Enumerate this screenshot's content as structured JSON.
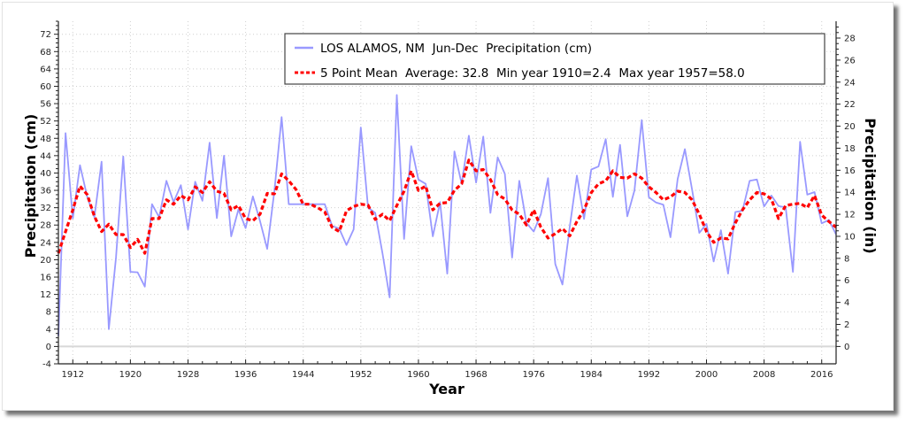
{
  "chart_data": {
    "type": "line",
    "title": "",
    "xlabel": "Year",
    "ylabel": "Precipitation (cm)",
    "ylabel_right": "Precipitation (in)",
    "xlim": [
      1910,
      2018
    ],
    "ylim": [
      -4,
      75
    ],
    "ylim_right_in": [
      -1.575,
      29.53
    ],
    "grid": true,
    "legend_position": "top-right",
    "x_ticks": [
      1912,
      1920,
      1928,
      1936,
      1944,
      1952,
      1960,
      1968,
      1976,
      1984,
      1992,
      2000,
      2008,
      2016
    ],
    "y_ticks": [
      -4,
      0,
      4,
      8,
      12,
      16,
      20,
      24,
      28,
      32,
      36,
      40,
      44,
      48,
      52,
      56,
      60,
      64,
      68,
      72
    ],
    "y_ticks_right": [
      0,
      2,
      4,
      6,
      8,
      10,
      12,
      14,
      16,
      18,
      20,
      22,
      24,
      26,
      28
    ],
    "series": [
      {
        "name": "LOS ALAMOS, NM  Jun-Dec  Precipitation (cm)",
        "color": "#9999ff",
        "style": "solid",
        "x_start": 1910,
        "values": [
          2.4,
          49.2,
          29.5,
          41.8,
          34.5,
          29.8,
          42.6,
          4.0,
          20.5,
          43.8,
          17.2,
          17.1,
          13.8,
          32.8,
          29.8,
          38.2,
          33.3,
          37.2,
          27.0,
          38.0,
          33.6,
          47.0,
          29.6,
          44.0,
          25.4,
          31.6,
          27.3,
          34.6,
          28.9,
          22.5,
          36.0,
          52.9,
          32.8,
          32.8,
          32.8,
          32.8,
          32.8,
          32.8,
          27.8,
          27.2,
          23.4,
          27.0,
          50.5,
          32.0,
          30.8,
          21.5,
          11.3,
          58.0,
          24.8,
          46.2,
          38.5,
          37.5,
          25.4,
          33.3,
          16.8,
          45.0,
          37.5,
          48.6,
          37.8,
          48.4,
          30.8,
          43.6,
          39.8,
          20.5,
          38.2,
          28.5,
          26.5,
          30.5,
          38.8,
          19.0,
          14.3,
          27.5,
          39.4,
          29.4,
          40.8,
          41.5,
          47.8,
          34.5,
          46.5,
          30.0,
          36.0,
          52.2,
          34.4,
          33.2,
          32.7,
          25.2,
          38.6,
          45.5,
          36.2,
          26.2,
          28.3,
          19.6,
          26.8,
          16.8,
          31.0,
          31.3,
          38.2,
          38.5,
          32.3,
          34.8,
          32.4,
          32.1,
          17.2,
          47.2,
          35.0,
          35.6,
          28.4,
          29.2,
          25.8
        ]
      },
      {
        "name": "5 Point Mean  Average: 32.8  Min year 1910=2.4  Max year 1957=58.0",
        "color": "#ff0000",
        "style": "dashed",
        "x_start": 1910,
        "values": [
          21.5,
          26.5,
          31.5,
          37.0,
          35.0,
          30.0,
          26.5,
          28.2,
          25.8,
          25.8,
          22.8,
          24.7,
          21.5,
          29.5,
          29.5,
          33.8,
          32.8,
          34.8,
          33.8,
          36.8,
          35.5,
          38.0,
          35.8,
          35.3,
          31.5,
          32.5,
          29.5,
          29.0,
          30.5,
          35.3,
          35.2,
          39.8,
          38.2,
          36.2,
          32.8,
          32.8,
          32.0,
          31.0,
          27.5,
          26.5,
          31.3,
          32.3,
          32.8,
          32.6,
          29.3,
          30.5,
          29.0,
          32.5,
          35.8,
          40.5,
          36.0,
          37.0,
          31.5,
          33.0,
          33.2,
          36.0,
          37.5,
          43.0,
          40.5,
          40.8,
          38.5,
          35.0,
          34.0,
          31.5,
          30.5,
          28.0,
          31.5,
          27.5,
          25.0,
          26.0,
          27.2,
          25.5,
          28.8,
          31.5,
          35.5,
          37.5,
          38.2,
          40.5,
          39.0,
          38.8,
          39.8,
          38.8,
          36.8,
          35.5,
          33.8,
          34.5,
          35.8,
          35.5,
          33.8,
          30.5,
          26.5,
          24.0,
          25.0,
          24.8,
          28.5,
          31.5,
          33.8,
          35.5,
          35.2,
          34.0,
          29.5,
          32.5,
          32.8,
          33.0,
          32.0,
          34.8,
          30.3,
          28.8,
          27.5
        ]
      }
    ]
  }
}
